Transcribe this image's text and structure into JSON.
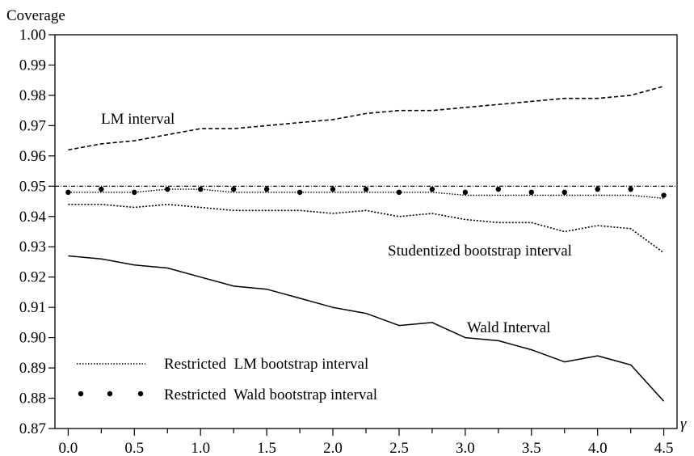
{
  "chart_data": {
    "type": "line",
    "ylabel": "Coverage",
    "xlabel": "γ",
    "xlim": [
      -0.1,
      4.6
    ],
    "ylim": [
      0.87,
      1.0
    ],
    "x_ticks": [
      0.0,
      0.5,
      1.0,
      1.5,
      2.0,
      2.5,
      3.0,
      3.5,
      4.0,
      4.5
    ],
    "x_tick_labels": [
      "0.0",
      "0.5",
      "1.0",
      "1.5",
      "2.0",
      "2.5",
      "3.0",
      "3.5",
      "4.0",
      "4.5"
    ],
    "y_ticks": [
      0.87,
      0.88,
      0.89,
      0.9,
      0.91,
      0.92,
      0.93,
      0.94,
      0.95,
      0.96,
      0.97,
      0.98,
      0.99,
      1.0
    ],
    "y_tick_labels": [
      "0.87",
      "0.88",
      "0.89",
      "0.90",
      "0.91",
      "0.92",
      "0.93",
      "0.94",
      "0.95",
      "0.96",
      "0.97",
      "0.98",
      "0.99",
      "1.00"
    ],
    "x": [
      0.0,
      0.25,
      0.5,
      0.75,
      1.0,
      1.25,
      1.5,
      1.75,
      2.0,
      2.25,
      2.5,
      2.75,
      3.0,
      3.25,
      3.5,
      3.75,
      4.0,
      4.25,
      4.5
    ],
    "reference_line": {
      "y": 0.95
    },
    "series": [
      {
        "name": "LM interval",
        "style": "dashed",
        "values": [
          0.962,
          0.964,
          0.965,
          0.967,
          0.969,
          0.969,
          0.97,
          0.971,
          0.972,
          0.974,
          0.975,
          0.975,
          0.976,
          0.977,
          0.978,
          0.979,
          0.979,
          0.98,
          0.983
        ]
      },
      {
        "name": "Studentized bootstrap interval",
        "style": "dotted",
        "values": [
          0.944,
          0.944,
          0.943,
          0.944,
          0.943,
          0.942,
          0.942,
          0.942,
          0.941,
          0.942,
          0.94,
          0.941,
          0.939,
          0.938,
          0.938,
          0.935,
          0.937,
          0.936,
          0.928
        ]
      },
      {
        "name": "Wald Interval",
        "style": "solid",
        "values": [
          0.927,
          0.926,
          0.924,
          0.923,
          0.92,
          0.917,
          0.916,
          0.913,
          0.91,
          0.908,
          0.904,
          0.905,
          0.9,
          0.899,
          0.896,
          0.892,
          0.894,
          0.891,
          0.879
        ]
      },
      {
        "name": "Restricted LM bootstrap interval",
        "style": "fine-dotted",
        "values": [
          0.948,
          0.948,
          0.948,
          0.949,
          0.949,
          0.948,
          0.948,
          0.948,
          0.948,
          0.948,
          0.948,
          0.948,
          0.947,
          0.947,
          0.947,
          0.947,
          0.947,
          0.947,
          0.946
        ]
      },
      {
        "name": "Restricted Wald bootstrap interval",
        "style": "dots",
        "values": [
          0.948,
          0.949,
          0.948,
          0.949,
          0.949,
          0.949,
          0.949,
          0.948,
          0.949,
          0.949,
          0.948,
          0.949,
          0.948,
          0.949,
          0.948,
          0.948,
          0.949,
          0.949,
          0.947
        ]
      }
    ],
    "annotations": {
      "lm": "LM interval",
      "studentized": "Studentized bootstrap interval",
      "wald": "Wald Interval"
    },
    "legend": [
      {
        "label": "Restricted  LM bootstrap interval",
        "style": "fine-dotted"
      },
      {
        "label": "Restricted  Wald bootstrap interval",
        "style": "dots"
      }
    ],
    "legend_position": "bottom-left",
    "grid": false
  }
}
